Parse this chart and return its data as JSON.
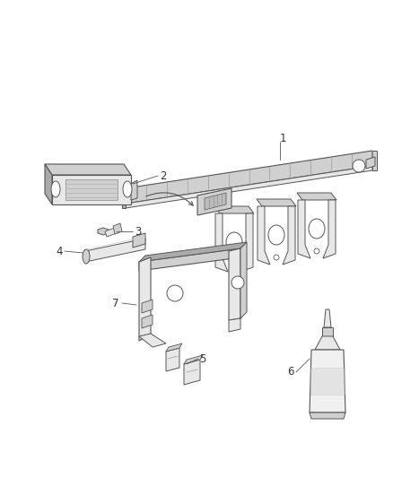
{
  "bg_color": "#ffffff",
  "fig_width": 4.38,
  "fig_height": 5.33,
  "dpi": 100,
  "line_color": "#555555",
  "fill_light": "#e8e8e8",
  "fill_mid": "#d0d0d0",
  "fill_dark": "#aaaaaa",
  "label_fontsize": 8.5,
  "label_color": "#333333"
}
